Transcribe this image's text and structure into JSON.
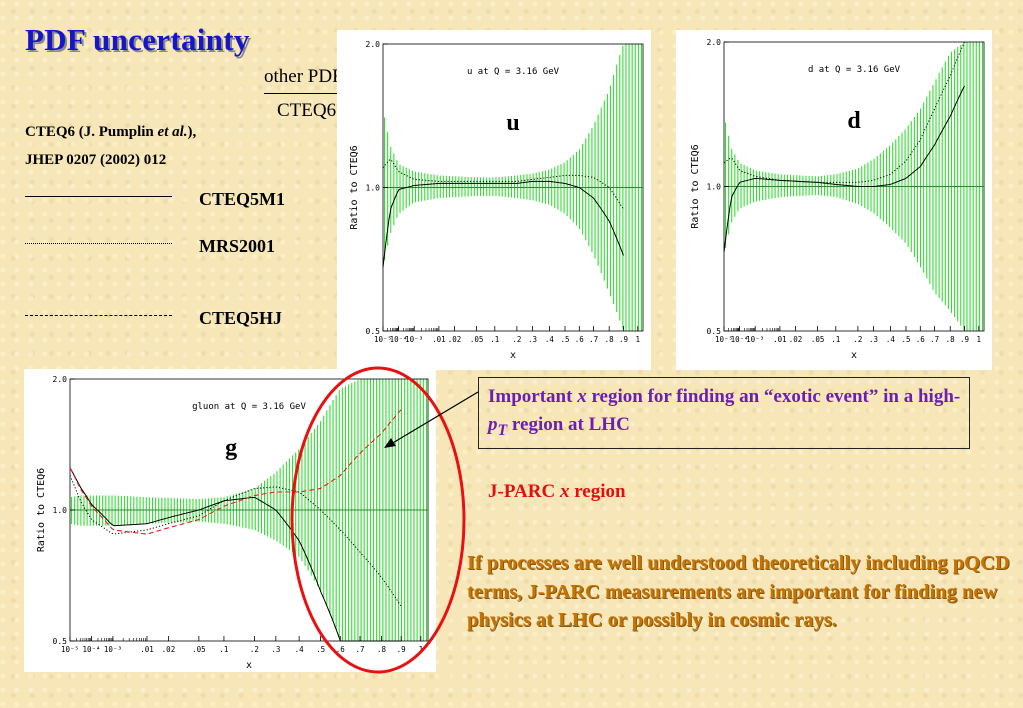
{
  "slide": {
    "title": "PDF uncertainty",
    "ratio_numerator": "other PDF",
    "ratio_denominator": "CTEQ6",
    "reference_line1_pre": "CTEQ6 (J. Pumplin ",
    "reference_line1_em": "et al.",
    "reference_line1_post": "),",
    "reference_line2": "JHEP 0207 (2002) 012",
    "legend": [
      {
        "label": "CTEQ5M1",
        "style": "solid"
      },
      {
        "label": "MRS2001",
        "style": "dotted"
      },
      {
        "label": "CTEQ5HJ",
        "style": "dashed"
      }
    ],
    "callout": {
      "text_a": "Important ",
      "text_x": "x",
      "text_b": " region for finding an “exotic event” in a high-",
      "text_p": "p",
      "text_sub": "T",
      "text_c": " region at LHC"
    },
    "jparc": {
      "text_a": "J-PARC ",
      "text_x": "x",
      "text_b": " region"
    },
    "conclusion": "If processes are well understood theoretically including pQCD terms, J-PARC measurements are important for finding new physics at LHC or possibly in cosmic rays.",
    "colors": {
      "title": "#1616c8",
      "callout": "#6b1fb3",
      "jparc": "#e01010",
      "conclusion": "#c87200",
      "band": "#33dd33",
      "ellipse": "#e81010"
    }
  },
  "chart_data": [
    {
      "type": "line",
      "id": "u",
      "panel_label": "u",
      "title": "u at Q = 3.16 GeV",
      "xlabel": "x",
      "ylabel": "Ratio to CTEQ6",
      "x_scale": "log",
      "ylim": [
        0.5,
        2.0
      ],
      "x_ticks": [
        "10⁻⁵",
        "10⁻⁴",
        "10⁻³",
        ".01",
        ".02",
        ".05",
        ".1",
        ".2",
        ".3",
        ".4",
        ".5",
        ".6",
        ".7",
        ".8",
        ".9",
        "1"
      ],
      "y_ticks": [
        "0.5",
        "1.0",
        "2.0"
      ],
      "x": [
        1e-05,
        3e-05,
        0.0001,
        0.001,
        0.01,
        0.05,
        0.1,
        0.2,
        0.3,
        0.4,
        0.5,
        0.6,
        0.7,
        0.8,
        0.9
      ],
      "band": {
        "lower": [
          0.68,
          0.8,
          0.88,
          0.93,
          0.95,
          0.96,
          0.96,
          0.95,
          0.94,
          0.92,
          0.88,
          0.82,
          0.72,
          0.6,
          0.5
        ],
        "upper": [
          1.45,
          1.22,
          1.12,
          1.08,
          1.06,
          1.05,
          1.05,
          1.06,
          1.07,
          1.09,
          1.13,
          1.2,
          1.35,
          1.6,
          2.0
        ]
      },
      "series": [
        {
          "name": "CTEQ5M1",
          "y": [
            0.68,
            0.9,
            0.99,
            1.01,
            1.02,
            1.02,
            1.02,
            1.02,
            1.03,
            1.03,
            1.02,
            1.0,
            0.95,
            0.85,
            0.72
          ]
        },
        {
          "name": "MRS2001",
          "y": [
            1.1,
            1.15,
            1.08,
            1.04,
            1.03,
            1.03,
            1.03,
            1.03,
            1.04,
            1.05,
            1.06,
            1.06,
            1.05,
            1.0,
            0.9
          ]
        }
      ]
    },
    {
      "type": "line",
      "id": "d",
      "panel_label": "d",
      "title": "d at Q = 3.16 GeV",
      "xlabel": "x",
      "ylabel": "Ratio to CTEQ6",
      "x_scale": "log",
      "ylim": [
        0.5,
        2.0
      ],
      "x_ticks": [
        "10⁻⁵",
        "10⁻⁴",
        "10⁻³",
        ".01",
        ".02",
        ".05",
        ".1",
        ".2",
        ".3",
        ".4",
        ".5",
        ".6",
        ".7",
        ".8",
        ".9",
        "1"
      ],
      "y_ticks": [
        "0.5",
        "1.0",
        "2.0"
      ],
      "x": [
        1e-05,
        3e-05,
        0.0001,
        0.001,
        0.01,
        0.05,
        0.1,
        0.2,
        0.3,
        0.4,
        0.5,
        0.6,
        0.7,
        0.8,
        0.9
      ],
      "band": {
        "lower": [
          0.72,
          0.84,
          0.9,
          0.93,
          0.95,
          0.96,
          0.95,
          0.92,
          0.88,
          0.82,
          0.76,
          0.68,
          0.6,
          0.55,
          0.5
        ],
        "upper": [
          1.4,
          1.2,
          1.12,
          1.08,
          1.06,
          1.05,
          1.06,
          1.09,
          1.14,
          1.22,
          1.32,
          1.45,
          1.65,
          1.9,
          2.0
        ]
      },
      "series": [
        {
          "name": "CTEQ5M1",
          "y": [
            0.73,
            0.95,
            1.02,
            1.04,
            1.03,
            1.02,
            1.01,
            1.0,
            1.0,
            1.01,
            1.04,
            1.1,
            1.22,
            1.4,
            1.62
          ]
        },
        {
          "name": "MRS2001",
          "y": [
            1.12,
            1.15,
            1.08,
            1.05,
            1.03,
            1.02,
            1.02,
            1.02,
            1.03,
            1.06,
            1.13,
            1.25,
            1.45,
            1.7,
            2.0
          ]
        }
      ]
    },
    {
      "type": "line",
      "id": "g",
      "panel_label": "g",
      "title": "gluon at Q = 3.16 GeV",
      "xlabel": "x",
      "ylabel": "Ratio to CTEQ6",
      "x_scale": "log",
      "ylim": [
        0.5,
        2.0
      ],
      "x_ticks": [
        "10⁻⁵",
        "10⁻⁴",
        "10⁻³",
        ".01",
        ".02",
        ".05",
        ".1",
        ".2",
        ".3",
        ".4",
        ".5",
        ".6",
        ".7",
        ".8",
        ".9",
        "1"
      ],
      "y_ticks": [
        "0.5",
        "1.0",
        "2.0"
      ],
      "x": [
        1e-05,
        3e-05,
        0.0001,
        0.001,
        0.01,
        0.05,
        0.1,
        0.2,
        0.3,
        0.4,
        0.5,
        0.6,
        0.7,
        0.8,
        0.9
      ],
      "band": {
        "lower": [
          0.93,
          0.92,
          0.92,
          0.92,
          0.93,
          0.94,
          0.93,
          0.9,
          0.85,
          0.78,
          0.65,
          0.5,
          0.5,
          0.5,
          0.5
        ],
        "upper": [
          1.07,
          1.08,
          1.08,
          1.08,
          1.07,
          1.06,
          1.07,
          1.12,
          1.22,
          1.38,
          1.6,
          1.9,
          2.0,
          2.0,
          2.0
        ]
      },
      "series": [
        {
          "name": "CTEQ5M1",
          "y": [
            1.25,
            1.13,
            1.03,
            0.92,
            0.93,
            1.0,
            1.05,
            1.07,
            1.0,
            0.85,
            0.65,
            0.5,
            0.5,
            0.5,
            0.5
          ]
        },
        {
          "name": "MRS2001",
          "y": [
            1.2,
            1.05,
            0.95,
            0.88,
            0.9,
            0.97,
            1.05,
            1.12,
            1.13,
            1.1,
            1.0,
            0.9,
            0.8,
            0.7,
            0.6
          ]
        },
        {
          "name": "CTEQ5HJ",
          "y": [
            1.25,
            1.12,
            1.02,
            0.9,
            0.88,
            0.95,
            1.02,
            1.08,
            1.1,
            1.1,
            1.12,
            1.2,
            1.35,
            1.5,
            1.7
          ]
        }
      ]
    }
  ]
}
